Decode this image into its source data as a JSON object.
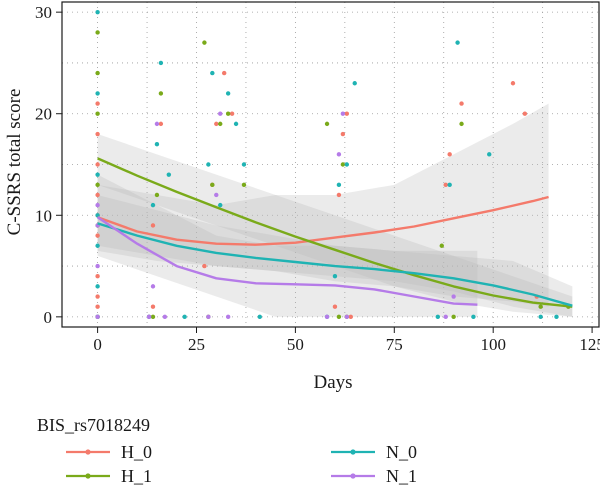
{
  "chart_data": {
    "type": "scatter",
    "xlabel": "Days",
    "ylabel": "C-SSRS total score",
    "xlim": [
      -9,
      127
    ],
    "ylim": [
      -1,
      31
    ],
    "x_ticks": [
      0,
      25,
      50,
      75,
      100,
      125
    ],
    "y_ticks": [
      0,
      10,
      20,
      30
    ],
    "x_tick_labels": [
      "0",
      "25",
      "50",
      "75",
      "100",
      "125"
    ],
    "y_tick_labels": [
      "0",
      "10",
      "20",
      "30"
    ],
    "grid": "dotted",
    "legend_placement": "bottom",
    "legend_title": "BIS_rs7018249",
    "series": [
      {
        "name": "H_0",
        "color": "#f47a6b",
        "points": [
          [
            0,
            0
          ],
          [
            0,
            1
          ],
          [
            0,
            2
          ],
          [
            0,
            4
          ],
          [
            0,
            8
          ],
          [
            0,
            10
          ],
          [
            0,
            12
          ],
          [
            0,
            15
          ],
          [
            0,
            18
          ],
          [
            0,
            21
          ],
          [
            13,
            0
          ],
          [
            14,
            1
          ],
          [
            14,
            9
          ],
          [
            16,
            19
          ],
          [
            27,
            5
          ],
          [
            29,
            13
          ],
          [
            30,
            19
          ],
          [
            32,
            24
          ],
          [
            34,
            20
          ],
          [
            60,
            1
          ],
          [
            61,
            12
          ],
          [
            62,
            18
          ],
          [
            63,
            20
          ],
          [
            64,
            0
          ],
          [
            88,
            13
          ],
          [
            89,
            16
          ],
          [
            92,
            21
          ],
          [
            105,
            23
          ],
          [
            108,
            20
          ],
          [
            111,
            2
          ]
        ],
        "trend": [
          [
            0,
            9.8
          ],
          [
            10,
            8.4
          ],
          [
            20,
            7.6
          ],
          [
            30,
            7.2
          ],
          [
            40,
            7.1
          ],
          [
            50,
            7.3
          ],
          [
            60,
            7.8
          ],
          [
            70,
            8.3
          ],
          [
            80,
            8.9
          ],
          [
            90,
            9.7
          ],
          [
            100,
            10.5
          ],
          [
            110,
            11.4
          ],
          [
            114,
            11.8
          ]
        ]
      },
      {
        "name": "H_1",
        "color": "#7aaa1a",
        "points": [
          [
            0,
            0
          ],
          [
            0,
            9
          ],
          [
            0,
            13
          ],
          [
            0,
            20
          ],
          [
            0,
            24
          ],
          [
            0,
            28
          ],
          [
            14,
            0
          ],
          [
            15,
            12
          ],
          [
            16,
            22
          ],
          [
            27,
            27
          ],
          [
            28,
            0
          ],
          [
            29,
            13
          ],
          [
            31,
            19
          ],
          [
            33,
            20
          ],
          [
            37,
            13
          ],
          [
            58,
            19
          ],
          [
            61,
            0
          ],
          [
            62,
            15
          ],
          [
            63,
            0
          ],
          [
            87,
            7
          ],
          [
            90,
            0
          ],
          [
            92,
            19
          ],
          [
            112,
            1
          ],
          [
            119,
            1
          ]
        ],
        "trend": [
          [
            0,
            15.6
          ],
          [
            10,
            13.9
          ],
          [
            20,
            12.3
          ],
          [
            30,
            10.8
          ],
          [
            40,
            9.3
          ],
          [
            50,
            7.9
          ],
          [
            60,
            6.6
          ],
          [
            70,
            5.3
          ],
          [
            80,
            4.1
          ],
          [
            90,
            3.0
          ],
          [
            100,
            2.1
          ],
          [
            110,
            1.4
          ],
          [
            120,
            1.0
          ]
        ]
      },
      {
        "name": "N_0",
        "color": "#1fb3b3",
        "points": [
          [
            0,
            0
          ],
          [
            0,
            3
          ],
          [
            0,
            7
          ],
          [
            0,
            10
          ],
          [
            0,
            14
          ],
          [
            0,
            22
          ],
          [
            0,
            30
          ],
          [
            13,
            0
          ],
          [
            14,
            11
          ],
          [
            15,
            17
          ],
          [
            16,
            25
          ],
          [
            18,
            14
          ],
          [
            22,
            0
          ],
          [
            28,
            15
          ],
          [
            29,
            24
          ],
          [
            31,
            11
          ],
          [
            33,
            22
          ],
          [
            35,
            19
          ],
          [
            37,
            15
          ],
          [
            41,
            0
          ],
          [
            58,
            0
          ],
          [
            60,
            4
          ],
          [
            61,
            13
          ],
          [
            63,
            15
          ],
          [
            65,
            23
          ],
          [
            86,
            0
          ],
          [
            89,
            13
          ],
          [
            91,
            27
          ],
          [
            95,
            0
          ],
          [
            99,
            16
          ],
          [
            112,
            0
          ],
          [
            116,
            0
          ]
        ],
        "trend": [
          [
            0,
            9.2
          ],
          [
            10,
            8.0
          ],
          [
            20,
            7.0
          ],
          [
            30,
            6.3
          ],
          [
            40,
            5.8
          ],
          [
            50,
            5.4
          ],
          [
            60,
            5.0
          ],
          [
            70,
            4.7
          ],
          [
            80,
            4.3
          ],
          [
            90,
            3.8
          ],
          [
            100,
            3.1
          ],
          [
            110,
            2.2
          ],
          [
            120,
            1.1
          ]
        ]
      },
      {
        "name": "N_1",
        "color": "#b57be8",
        "points": [
          [
            0,
            0
          ],
          [
            0,
            5
          ],
          [
            0,
            9
          ],
          [
            0,
            11
          ],
          [
            13,
            0
          ],
          [
            14,
            3
          ],
          [
            15,
            19
          ],
          [
            17,
            0
          ],
          [
            28,
            0
          ],
          [
            30,
            12
          ],
          [
            31,
            20
          ],
          [
            33,
            0
          ],
          [
            58,
            0
          ],
          [
            61,
            16
          ],
          [
            62,
            20
          ],
          [
            63,
            0
          ],
          [
            88,
            0
          ],
          [
            90,
            2
          ]
        ],
        "trend": [
          [
            0,
            9.8
          ],
          [
            10,
            7.2
          ],
          [
            20,
            5.0
          ],
          [
            30,
            3.8
          ],
          [
            40,
            3.3
          ],
          [
            50,
            3.2
          ],
          [
            60,
            3.1
          ],
          [
            70,
            2.7
          ],
          [
            80,
            2.0
          ],
          [
            90,
            1.3
          ],
          [
            96,
            1.2
          ]
        ]
      }
    ],
    "bands": [
      {
        "series": "H_0",
        "x": [
          0,
          15,
          30,
          45,
          60,
          75,
          90,
          105,
          114
        ],
        "lo": [
          7,
          6,
          5,
          4.5,
          3.5,
          3,
          2,
          1.5,
          1
        ],
        "hi": [
          13,
          12,
          11,
          12,
          12,
          13,
          16,
          19,
          21
        ]
      },
      {
        "series": "H_1",
        "x": [
          0,
          15,
          30,
          45,
          60,
          75,
          90,
          105,
          120
        ],
        "lo": [
          13,
          11,
          9,
          7,
          5,
          3,
          1.5,
          0.5,
          0
        ],
        "hi": [
          18,
          16,
          14,
          12,
          10,
          8,
          6,
          4,
          2
        ]
      },
      {
        "series": "N_0",
        "x": [
          0,
          15,
          30,
          45,
          60,
          75,
          90,
          105,
          120
        ],
        "lo": [
          6.5,
          5.5,
          5,
          4.5,
          4,
          3.5,
          2.5,
          1,
          0
        ],
        "hi": [
          12,
          10.5,
          9,
          8,
          7,
          6.5,
          6,
          5.5,
          3
        ]
      },
      {
        "series": "N_1",
        "x": [
          0,
          15,
          30,
          45,
          60,
          75,
          90,
          96
        ],
        "lo": [
          6,
          4,
          2,
          0,
          0,
          0,
          0,
          0
        ],
        "hi": [
          14,
          11,
          8,
          7,
          7,
          6.5,
          6.5,
          6.5
        ]
      }
    ]
  }
}
